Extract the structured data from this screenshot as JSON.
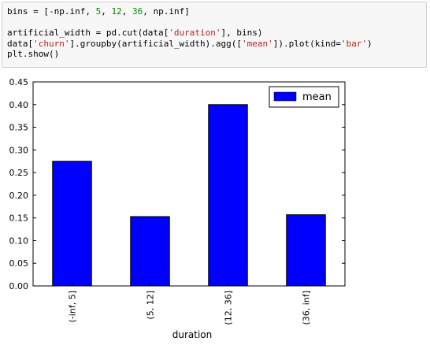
{
  "code_cell": {
    "lines": [
      "bins = [-np.inf, 5, 12, 36, np.inf]",
      "",
      "artificial_width = pd.cut(data['duration'], bins)",
      "data['churn'].groupby(artificial_width).agg(['mean']).plot(kind='bar')",
      "plt.show()"
    ]
  },
  "chart_data": {
    "type": "bar",
    "categories": [
      "(-inf, 5]",
      "(5, 12]",
      "(12, 36]",
      "(36, inf]"
    ],
    "series": [
      {
        "name": "mean",
        "values": [
          0.275,
          0.153,
          0.4,
          0.157
        ],
        "color": "#0000ff"
      }
    ],
    "xlabel": "duration",
    "ylabel": "",
    "ylim": [
      0,
      0.45
    ],
    "yticks": [
      "0.00",
      "0.05",
      "0.10",
      "0.15",
      "0.20",
      "0.25",
      "0.30",
      "0.35",
      "0.40",
      "0.45"
    ],
    "legend_position": "top-right",
    "grid": false
  }
}
